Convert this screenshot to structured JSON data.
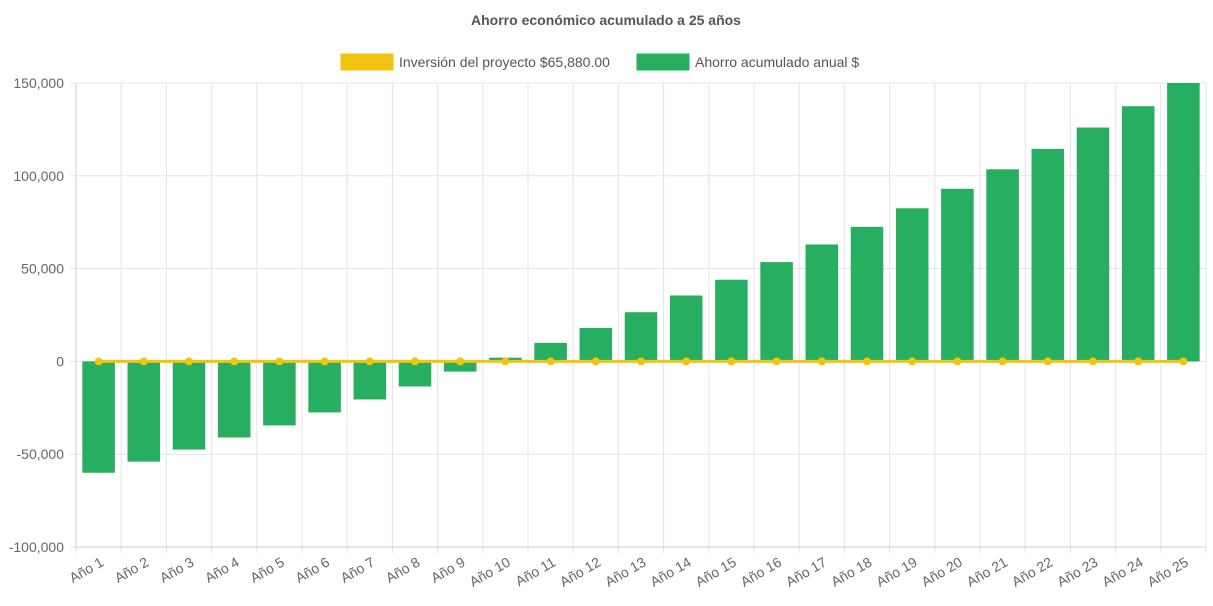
{
  "chart_data": {
    "type": "bar",
    "title": "Ahorro económico acumulado a 25 años",
    "xlabel": "",
    "ylabel": "",
    "ylim": [
      -100000,
      150000
    ],
    "y_ticks": [
      "150,000",
      "100,000",
      "50,000",
      "0",
      "-50,000",
      "-100,000"
    ],
    "y_tick_values": [
      150000,
      100000,
      50000,
      0,
      -50000,
      -100000
    ],
    "grid": true,
    "legend_position": "top-center",
    "categories": [
      "Año 1",
      "Año 2",
      "Año 3",
      "Año 4",
      "Año 5",
      "Año 6",
      "Año 7",
      "Año 8",
      "Año 9",
      "Año 10",
      "Año 11",
      "Año 12",
      "Año 13",
      "Año 14",
      "Año 15",
      "Año 16",
      "Año 17",
      "Año 18",
      "Año 19",
      "Año 20",
      "Año 21",
      "Año 22",
      "Año 23",
      "Año 24",
      "Año 25"
    ],
    "series": [
      {
        "name": "Inversión del proyecto $65,880.00",
        "type": "line",
        "color": "#f1c40f",
        "values": [
          0,
          0,
          0,
          0,
          0,
          0,
          0,
          0,
          0,
          0,
          0,
          0,
          0,
          0,
          0,
          0,
          0,
          0,
          0,
          0,
          0,
          0,
          0,
          0,
          0
        ]
      },
      {
        "name": "Ahorro acumulado anual $",
        "type": "bar",
        "color": "#27ae60",
        "values": [
          -60000,
          -54000,
          -47500,
          -41000,
          -34500,
          -27500,
          -20500,
          -13500,
          -5500,
          2000,
          10000,
          18000,
          26500,
          35500,
          44000,
          53500,
          63000,
          72500,
          82500,
          93000,
          103500,
          114500,
          126000,
          137500,
          150000
        ]
      }
    ]
  }
}
